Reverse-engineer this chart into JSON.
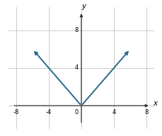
{
  "x_data": [
    -6,
    0,
    6
  ],
  "y_data": [
    6,
    0,
    6
  ],
  "xlim": [
    -9,
    9
  ],
  "ylim": [
    -2.5,
    10.5
  ],
  "x_axis_range": [
    -8.5,
    8.5
  ],
  "y_axis_range": [
    -2.0,
    10.0
  ],
  "xticks": [
    -8,
    -4,
    4,
    8
  ],
  "yticks": [
    4,
    8
  ],
  "line_color": "#2a6b8a",
  "line_width": 1.4,
  "xlabel": "x",
  "ylabel": "y",
  "background_color": "#ffffff",
  "grid_color": "#cccccc",
  "axes_color": "#333333",
  "tick_fontsize": 6,
  "label_fontsize": 7.5
}
